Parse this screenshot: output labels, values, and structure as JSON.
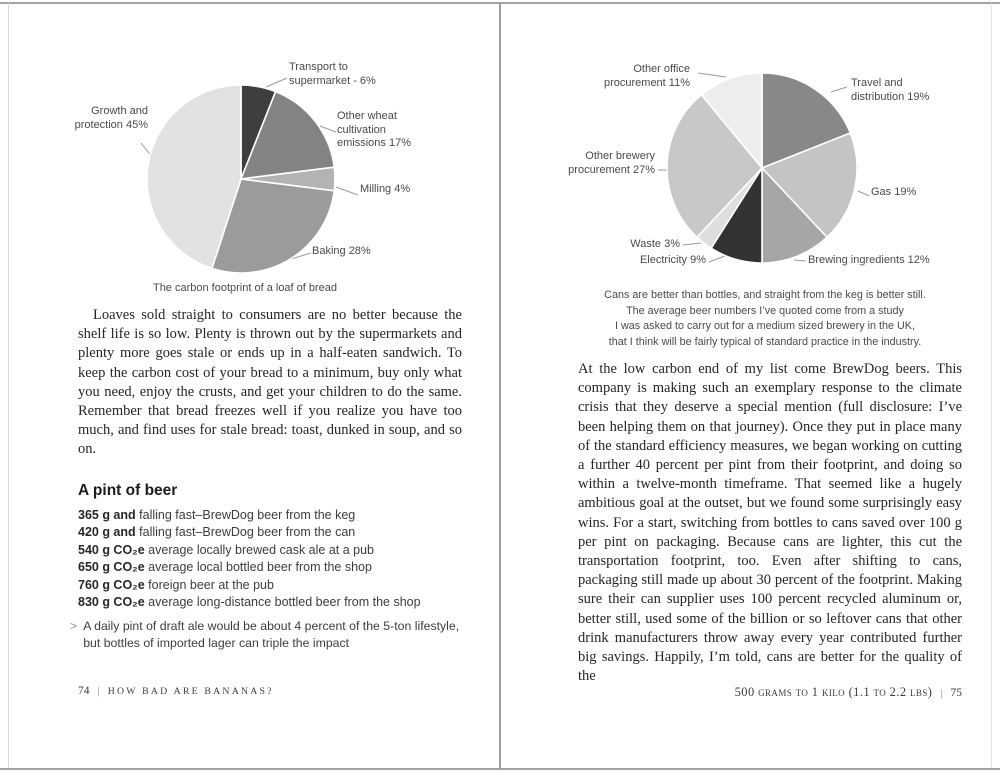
{
  "chart_data": [
    {
      "type": "pie",
      "title": "The carbon footprint of a loaf of bread",
      "unit": "percent",
      "start_angle": 0,
      "direction": "clockwise",
      "legend_position": "outside-labels",
      "slices": [
        {
          "label": "Transport to supermarket",
          "value": 6,
          "display": "Transport to supermarket - 6%",
          "color": "#3e3e3e"
        },
        {
          "label": "Other wheat cultivation emissions",
          "value": 17,
          "display": "Other wheat cultivation emissions 17%",
          "color": "#838383"
        },
        {
          "label": "Milling",
          "value": 4,
          "display": "Milling 4%",
          "color": "#b3b3b3"
        },
        {
          "label": "Baking",
          "value": 28,
          "display": "Baking 28%",
          "color": "#9b9b9b"
        },
        {
          "label": "Growth and protection",
          "value": 45,
          "display": "Growth and protection 45%",
          "color": "#e2e2e2"
        }
      ]
    },
    {
      "type": "pie",
      "title": "",
      "unit": "percent",
      "start_angle": 0,
      "direction": "clockwise",
      "legend_position": "outside-labels",
      "slices": [
        {
          "label": "Travel and distribution",
          "value": 19,
          "display": "Travel and distribution 19%",
          "color": "#888888"
        },
        {
          "label": "Gas",
          "value": 19,
          "display": "Gas 19%",
          "color": "#c4c4c4"
        },
        {
          "label": "Brewing ingredients",
          "value": 12,
          "display": "Brewing ingredients 12%",
          "color": "#a6a6a6"
        },
        {
          "label": "Electricity",
          "value": 9,
          "display": "Electricity 9%",
          "color": "#323232"
        },
        {
          "label": "Waste",
          "value": 3,
          "display": "Waste 3%",
          "color": "#dedede"
        },
        {
          "label": "Other brewery procurement",
          "value": 27,
          "display": "Other brewery procurement 27%",
          "color": "#c8c8c8"
        },
        {
          "label": "Other office procurement",
          "value": 11,
          "display": "Other office procurement 11%",
          "color": "#ededed"
        }
      ]
    }
  ],
  "page_left": {
    "body": "Loaves sold straight to consumers are no better because the shelf life is so low. Plenty is thrown out by the supermarkets and plenty more goes stale or ends up in a half-eaten sandwich. To keep the carbon cost of your bread to a minimum, buy only what you need, enjoy the crusts, and get your children to do the same. Remember that bread freezes well if you realize you have too much, and find uses for stale bread: toast, dunked in soup, and so on.",
    "beer": {
      "heading": "A pint of beer",
      "items": [
        {
          "amount": "365 g and",
          "desc": " falling fast–BrewDog beer from the keg"
        },
        {
          "amount": "420 g and",
          "desc": " falling fast–BrewDog beer from the can"
        },
        {
          "amount": "540 g CO₂e",
          "desc": " average locally brewed cask ale at a pub"
        },
        {
          "amount": "650 g CO₂e",
          "desc": " average local bottled beer from the shop"
        },
        {
          "amount": "760 g CO₂e",
          "desc": " foreign beer at the pub"
        },
        {
          "amount": "830 g CO₂e",
          "desc": " average long-distance bottled beer from the shop"
        }
      ],
      "note_marker": ">",
      "note": "A daily pint of draft ale would be about 4 percent of the 5-ton lifestyle, but bottles of imported lager can triple the impact"
    },
    "footer": {
      "page_number": "74",
      "divider": "|",
      "book_title": "HOW BAD ARE BANANAS?"
    }
  },
  "page_right": {
    "caption_lines": [
      "Cans are better than bottles, and straight from the keg is better still.",
      "The average beer numbers I’ve quoted come from a study",
      "I was asked to carry out for a medium sized brewery in the UK,",
      "that I think will be fairly typical of standard practice in the industry."
    ],
    "body": "At the low carbon end of my list come BrewDog beers. This company is making such an exemplary response to the climate crisis that they deserve a special mention (full disclosure: I’ve been helping them on that journey). Once they put in place many of the standard efficiency measures, we began working on cutting a further 40 percent per pint from their footprint, and doing so within a twelve-month timeframe. That seemed like a hugely ambitious goal at the outset, but we found some surprisingly easy wins. For a start, switching from bottles to cans saved over 100 g per pint on packaging. Because cans are lighter, this cut the transportation footprint, too. Even after shifting to cans, packaging still made up about 30 percent of the footprint. Making sure their can supplier uses 100 percent recycled aluminum or, better still, used some of the billion or so leftover cans that other drink manufacturers throw away every year contributed further big savings. Happily, I’m told, cans are better for the quality of the",
    "footer": {
      "section_label": "500 grams to 1 kilo (1.1 to 2.2 lbs)",
      "divider": "|",
      "page_number": "75"
    }
  }
}
